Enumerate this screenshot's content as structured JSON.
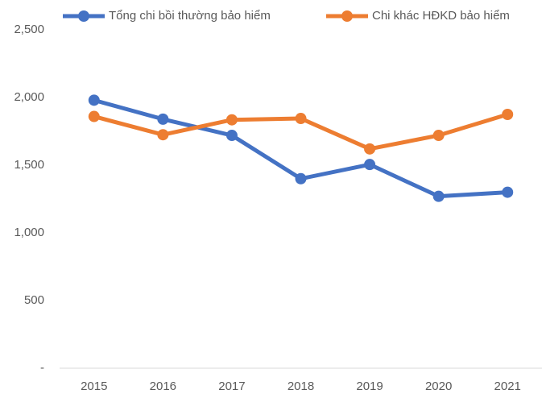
{
  "chart_data": {
    "type": "line",
    "categories": [
      "2015",
      "2016",
      "2017",
      "2018",
      "2019",
      "2020",
      "2021"
    ],
    "series": [
      {
        "name": "Tổng chi bồi thường bảo hiểm",
        "color": "#4472c4",
        "values": [
          1980,
          1840,
          1720,
          1400,
          1505,
          1270,
          1300
        ]
      },
      {
        "name": "Chi khác HĐKD bảo hiểm",
        "color": "#ed7d31",
        "values": [
          1860,
          1725,
          1835,
          1845,
          1620,
          1720,
          1875
        ]
      }
    ],
    "ylim": [
      0,
      2500
    ],
    "yticks": [
      {
        "value": 0,
        "label": "-"
      },
      500,
      {
        "value": 1000,
        "label": "1,000"
      },
      {
        "value": 1500,
        "label": "1,500"
      },
      {
        "value": 2000,
        "label": "2,000"
      },
      {
        "value": 2500,
        "label": "2,500"
      }
    ],
    "grid": false,
    "legend": "top"
  }
}
